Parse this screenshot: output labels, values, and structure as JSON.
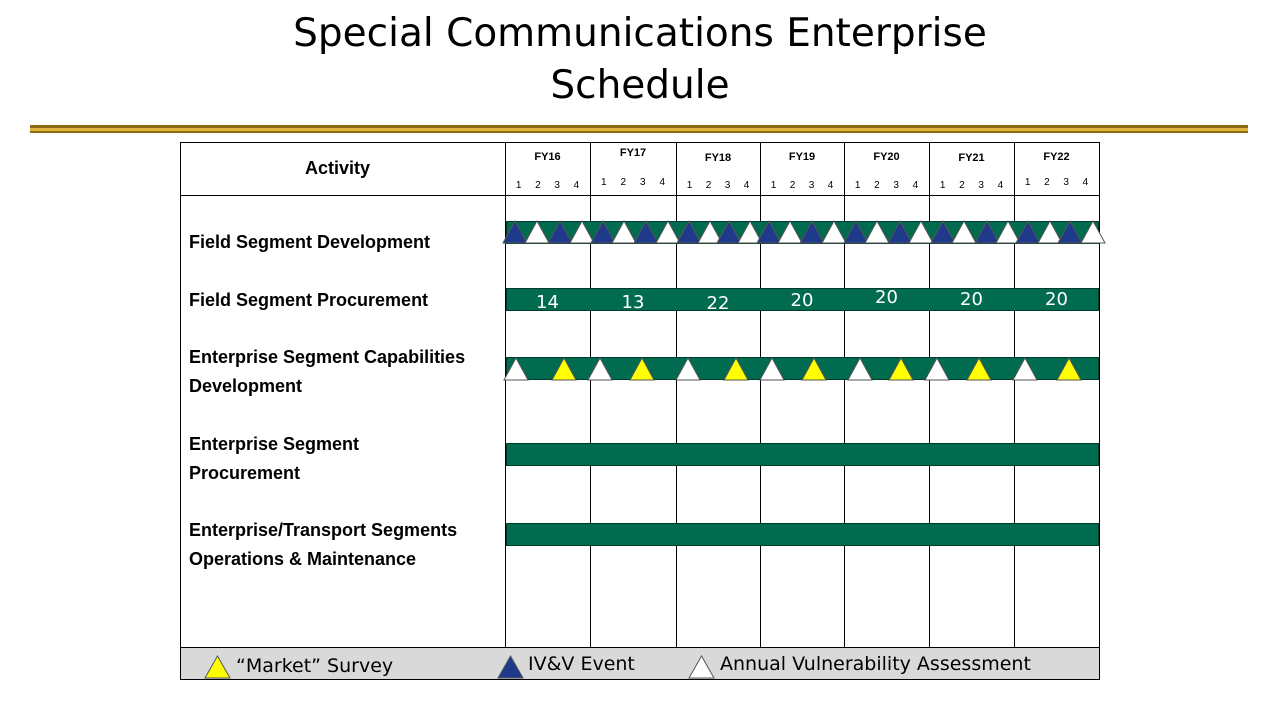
{
  "title": "Special Communications Enterprise\nSchedule",
  "header": {
    "activity_label": "Activity",
    "fiscal_years": [
      "FY16",
      "FY17",
      "FY18",
      "FY19",
      "FY20",
      "FY21",
      "FY22"
    ],
    "quarters": [
      "1",
      "2",
      "3",
      "4"
    ]
  },
  "rows": [
    {
      "label": "Field Segment Development"
    },
    {
      "label": "Field Segment Procurement",
      "counts": [
        "14",
        "13",
        "22",
        "20",
        "20",
        "20",
        "20"
      ]
    },
    {
      "label": "Enterprise Segment Capabilities\nDevelopment"
    },
    {
      "label": "Enterprise Segment\nProcurement"
    },
    {
      "label": "Enterprise/Transport Segments\nOperations & Maintenance"
    }
  ],
  "legend": {
    "market_survey": "“Market” Survey",
    "ivv_event": "IV&V Event",
    "vulnerability": "Annual Vulnerability Assessment"
  },
  "colors": {
    "bar": "#006b4f",
    "market_survey": "#ffff00",
    "ivv_event": "#1f3a8a",
    "vulnerability": "#ffffff",
    "rule_gold": "#e0b43a"
  },
  "icons": {
    "market_survey": "yellow-triangle-icon",
    "ivv_event": "blue-triangle-icon",
    "vulnerability": "white-triangle-icon"
  }
}
